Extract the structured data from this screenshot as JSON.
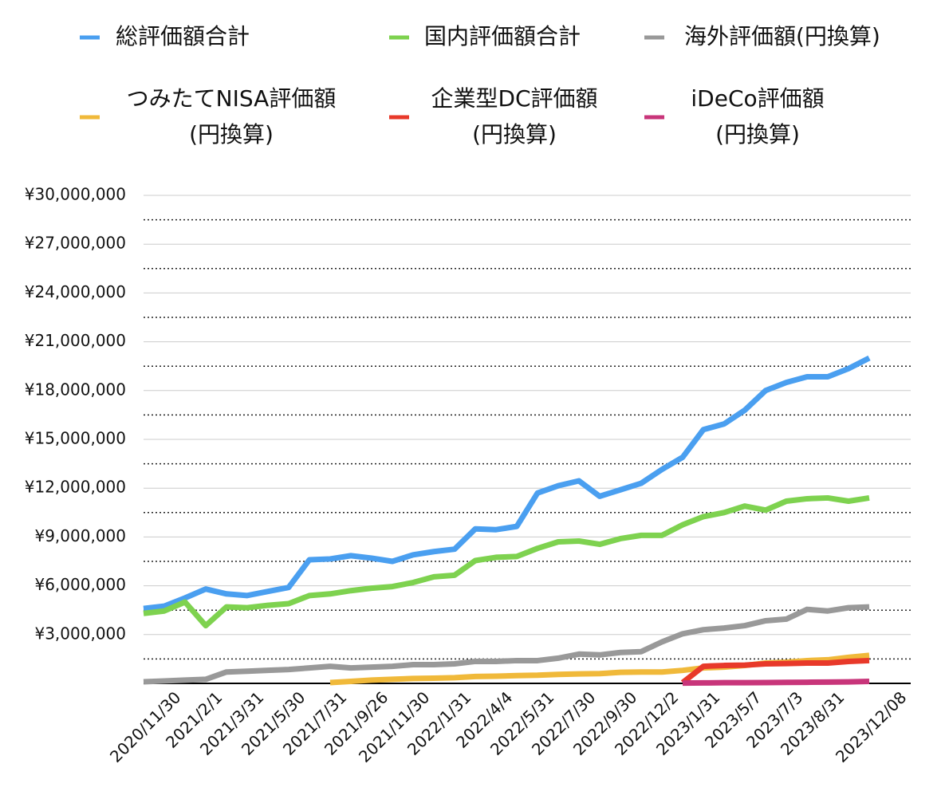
{
  "chart_data": {
    "type": "line",
    "categories": [
      "2020/11/30",
      null,
      "2021/2/1",
      null,
      "2021/3/31",
      null,
      "2021/5/30",
      null,
      "2021/7/31",
      null,
      "2021/9/26",
      null,
      "2021/11/30",
      null,
      "2022/1/31",
      null,
      "2022/4/4",
      null,
      "2022/5/31",
      null,
      "2022/7/30",
      null,
      "2022/9/30",
      null,
      "2022/12/2",
      null,
      "2023/1/31",
      null,
      "2023/5/7",
      null,
      "2023/7/3",
      null,
      "2023/8/31",
      null,
      null,
      "2023/12/08"
    ],
    "series": [
      {
        "name": "総評価額合計",
        "color": "#4a9ff0",
        "values": [
          4600000,
          4750000,
          5250000,
          5800000,
          5500000,
          5400000,
          5650000,
          5900000,
          7600000,
          7650000,
          7850000,
          7700000,
          7500000,
          7900000,
          8100000,
          8250000,
          9500000,
          9450000,
          9650000,
          11700000,
          12150000,
          12450000,
          11500000,
          11900000,
          12300000,
          13150000,
          13900000,
          15600000,
          15950000,
          16800000,
          18000000,
          18500000,
          18850000,
          18850000,
          19350000,
          20000000
        ]
      },
      {
        "name": "国内評価額合計",
        "color": "#7ed24f",
        "values": [
          4300000,
          4450000,
          5000000,
          3550000,
          4700000,
          4650000,
          4800000,
          4900000,
          5400000,
          5500000,
          5700000,
          5850000,
          5950000,
          6200000,
          6550000,
          6650000,
          7550000,
          7750000,
          7800000,
          8300000,
          8700000,
          8750000,
          8550000,
          8900000,
          9100000,
          9100000,
          9750000,
          10250000,
          10500000,
          10900000,
          10650000,
          11200000,
          11350000,
          11400000,
          11200000,
          11400000
        ]
      },
      {
        "name": "海外評価額(円換算)",
        "color": "#999999",
        "values": [
          100000,
          150000,
          200000,
          250000,
          700000,
          750000,
          800000,
          850000,
          950000,
          1050000,
          950000,
          1000000,
          1050000,
          1150000,
          1150000,
          1200000,
          1350000,
          1350000,
          1400000,
          1400000,
          1550000,
          1800000,
          1750000,
          1900000,
          1950000,
          2550000,
          3050000,
          3300000,
          3400000,
          3550000,
          3850000,
          3950000,
          4550000,
          4450000,
          4650000,
          4700000
        ]
      },
      {
        "name": "つみたてNISA評価額(円換算)",
        "color": "#f0b93a",
        "values": [
          null,
          null,
          null,
          null,
          null,
          null,
          null,
          null,
          null,
          50000,
          120000,
          200000,
          250000,
          300000,
          320000,
          350000,
          420000,
          440000,
          480000,
          500000,
          550000,
          580000,
          600000,
          680000,
          700000,
          700000,
          800000,
          950000,
          1000000,
          1100000,
          1250000,
          1300000,
          1400000,
          1450000,
          1600000,
          1720000
        ]
      },
      {
        "name": "企業型DC評価額(円換算)",
        "color": "#e8392a",
        "values": [
          null,
          null,
          null,
          null,
          null,
          null,
          null,
          null,
          null,
          null,
          null,
          null,
          null,
          null,
          null,
          null,
          null,
          null,
          null,
          null,
          null,
          null,
          null,
          null,
          null,
          null,
          50000,
          1050000,
          1100000,
          1120000,
          1200000,
          1220000,
          1250000,
          1250000,
          1350000,
          1400000
        ]
      },
      {
        "name": "iDeCo評価額(円換算)",
        "color": "#c8357a",
        "values": [
          null,
          null,
          null,
          null,
          null,
          null,
          null,
          null,
          null,
          null,
          null,
          null,
          null,
          null,
          null,
          null,
          null,
          null,
          null,
          null,
          null,
          null,
          null,
          null,
          null,
          null,
          20000,
          30000,
          40000,
          40000,
          50000,
          60000,
          70000,
          80000,
          90000,
          120000
        ]
      }
    ],
    "ylim": [
      0,
      30000000
    ],
    "yticks": [
      {
        "value": 3000000,
        "label": "¥3,000,000"
      },
      {
        "value": 6000000,
        "label": "¥6,000,000"
      },
      {
        "value": 9000000,
        "label": "¥9,000,000"
      },
      {
        "value": 12000000,
        "label": "¥12,000,000"
      },
      {
        "value": 15000000,
        "label": "¥15,000,000"
      },
      {
        "value": 18000000,
        "label": "¥18,000,000"
      },
      {
        "value": 21000000,
        "label": "¥21,000,000"
      },
      {
        "value": 24000000,
        "label": "¥24,000,000"
      },
      {
        "value": 27000000,
        "label": "¥27,000,000"
      },
      {
        "value": 30000000,
        "label": "¥30,000,000"
      }
    ],
    "minor_yticks": [
      1500000,
      4500000,
      7500000,
      10500000,
      13500000,
      16500000,
      19500000,
      22500000,
      25500000,
      28500000
    ],
    "grid": true,
    "legend": "top"
  }
}
